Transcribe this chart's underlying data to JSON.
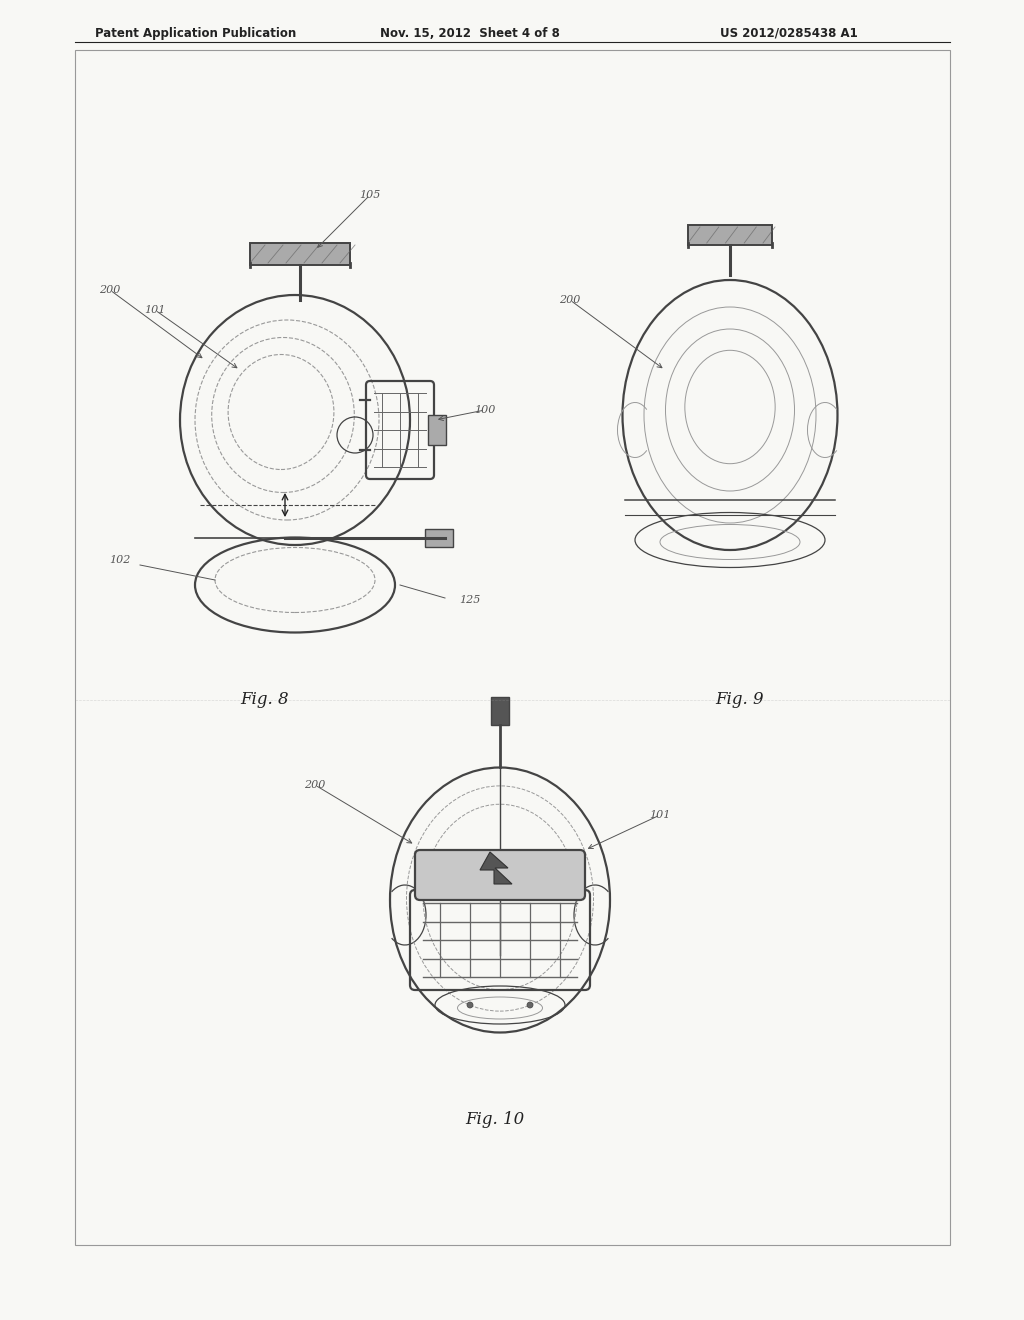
{
  "bg_color": "#ffffff",
  "page_bg": "#f8f8f5",
  "line_color": "#444444",
  "dark_color": "#222222",
  "med_line": "#666666",
  "light_line": "#999999",
  "header_text": "Patent Application Publication",
  "header_date": "Nov. 15, 2012  Sheet 4 of 8",
  "header_patent": "US 2012/0285438 A1",
  "fig8_label": "Fig. 8",
  "fig9_label": "Fig. 9",
  "fig10_label": "Fig. 10",
  "border_color": "#999999",
  "ref_color": "#555555",
  "handle_gray": "#aaaaaa",
  "handle_dark": "#666666"
}
